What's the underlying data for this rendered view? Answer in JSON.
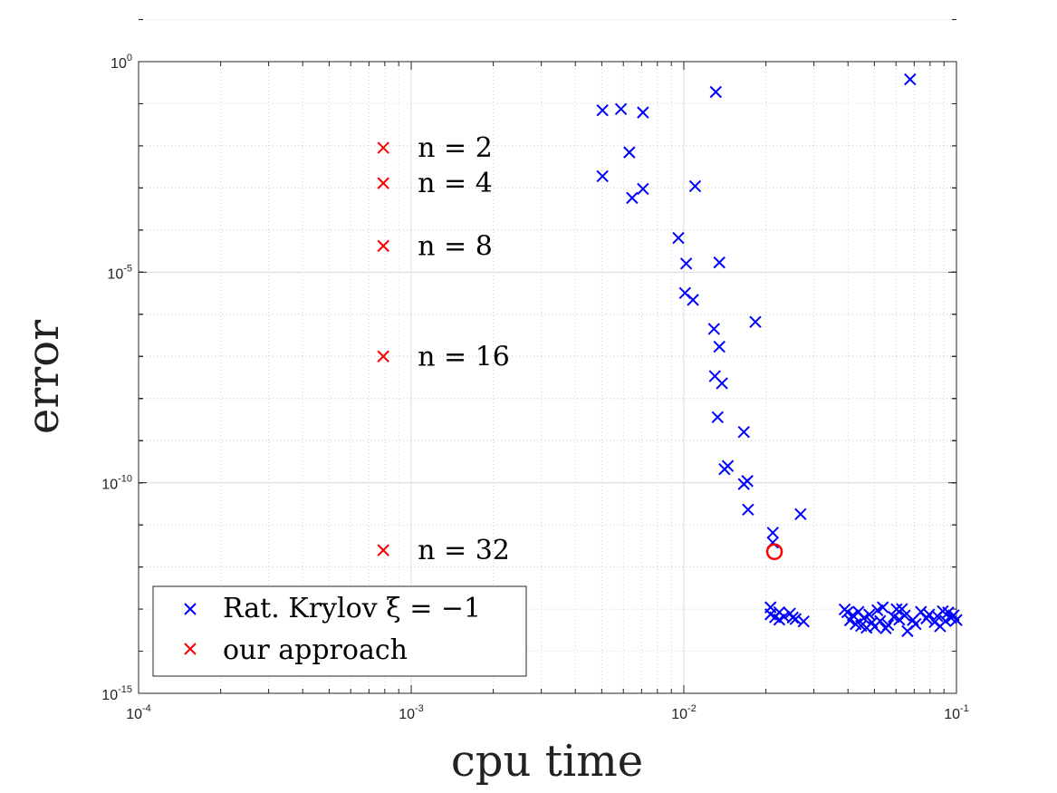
{
  "chart_data": {
    "type": "scatter",
    "xscale": "log",
    "yscale": "log",
    "xlim": [
      0.0001,
      0.1
    ],
    "ylim": [
      1e-15,
      1
    ],
    "xlabel": "cpu time",
    "ylabel": "error",
    "grid": true,
    "legend_position": "bottom-left",
    "x_ticks": [
      {
        "base": "10",
        "exp": "-4",
        "value": 0.0001
      },
      {
        "base": "10",
        "exp": "-3",
        "value": 0.001
      },
      {
        "base": "10",
        "exp": "-2",
        "value": 0.01
      },
      {
        "base": "10",
        "exp": "-1",
        "value": 0.1
      }
    ],
    "y_ticks": [
      {
        "base": "10",
        "exp": "0",
        "value": 1
      },
      {
        "base": "10",
        "exp": "-5",
        "value": 1e-05
      },
      {
        "base": "10",
        "exp": "-10",
        "value": 1e-10
      },
      {
        "base": "10",
        "exp": "-15",
        "value": 1e-15
      }
    ],
    "series": [
      {
        "name": "Rat. Krylov ξ = −1",
        "color": "#0000ff",
        "marker": "x",
        "points": [
          [
            0.00503,
            0.07
          ],
          [
            0.00503,
            0.0019
          ],
          [
            0.00588,
            0.075
          ],
          [
            0.00631,
            0.007
          ],
          [
            0.00646,
            0.00058
          ],
          [
            0.00708,
            0.062
          ],
          [
            0.00708,
            0.00095
          ],
          [
            0.00955,
            6.5e-05
          ],
          [
            0.0102,
            1.6e-05
          ],
          [
            0.0101,
            3.2e-06
          ],
          [
            0.0108,
            2.2e-06
          ],
          [
            0.011,
            0.0011
          ],
          [
            0.0131,
            0.19
          ],
          [
            0.0135,
            1.7e-05
          ],
          [
            0.0129,
            4.5e-07
          ],
          [
            0.0135,
            1.7e-07
          ],
          [
            0.013,
            3.4e-08
          ],
          [
            0.0138,
            2.3e-08
          ],
          [
            0.0133,
            3.6e-09
          ],
          [
            0.0166,
            1.6e-09
          ],
          [
            0.0141,
            2.1e-10
          ],
          [
            0.0145,
            2.5e-10
          ],
          [
            0.0183,
            6.6e-07
          ],
          [
            0.0166,
            9.3e-11
          ],
          [
            0.0171,
            1.1e-10
          ],
          [
            0.0172,
            2.3e-11
          ],
          [
            0.0212,
            6.5e-12
          ],
          [
            0.0212,
            3.8e-12
          ],
          [
            0.0208,
            1.1e-13
          ],
          [
            0.0208,
            7.5e-14
          ],
          [
            0.0216,
            6.4e-14
          ],
          [
            0.0224,
            8.4e-14
          ],
          [
            0.0224,
            5.6e-14
          ],
          [
            0.0233,
            6.6e-14
          ],
          [
            0.0245,
            7.8e-14
          ],
          [
            0.0251,
            6.3e-14
          ],
          [
            0.0257,
            5.8e-14
          ],
          [
            0.0268,
            1.8e-11
          ],
          [
            0.0275,
            5.1e-14
          ],
          [
            0.0389,
            9.8e-14
          ],
          [
            0.0398,
            8.4e-14
          ],
          [
            0.0407,
            5.4e-14
          ],
          [
            0.0417,
            7.1e-14
          ],
          [
            0.0427,
            4.4e-14
          ],
          [
            0.0437,
            8.6e-14
          ],
          [
            0.0447,
            4e-14
          ],
          [
            0.0457,
            6.1e-14
          ],
          [
            0.0468,
            3.6e-14
          ],
          [
            0.0479,
            7.4e-14
          ],
          [
            0.049,
            4.8e-14
          ],
          [
            0.0501,
            3.8e-14
          ],
          [
            0.0513,
            9.4e-14
          ],
          [
            0.0525,
            5.2e-14
          ],
          [
            0.0537,
            1.1e-13
          ],
          [
            0.055,
            3.5e-14
          ],
          [
            0.0562,
            4.2e-14
          ],
          [
            0.0589,
            6.5e-14
          ],
          [
            0.0603,
            9.9e-14
          ],
          [
            0.0617,
            5.6e-14
          ],
          [
            0.0631,
            1e-13
          ],
          [
            0.0646,
            7e-14
          ],
          [
            0.0661,
            3e-14
          ],
          [
            0.0676,
            0.38
          ],
          [
            0.0692,
            5.5e-14
          ],
          [
            0.0708,
            4.4e-14
          ],
          [
            0.0741,
            8.6e-14
          ],
          [
            0.0776,
            6e-14
          ],
          [
            0.0794,
            7.4e-14
          ],
          [
            0.0832,
            4.9e-14
          ],
          [
            0.0851,
            6.8e-14
          ],
          [
            0.0871,
            3.9e-14
          ],
          [
            0.0891,
            8.9e-14
          ],
          [
            0.0912,
            5.2e-14
          ],
          [
            0.0933,
            8.3e-14
          ],
          [
            0.0955,
            6.2e-14
          ],
          [
            0.0977,
            7.1e-14
          ],
          [
            0.1,
            5.5e-14
          ]
        ]
      },
      {
        "name": "our approach",
        "color": "#ff0000",
        "marker": "x",
        "points": [
          [
            0.00079,
            0.009
          ],
          [
            0.00079,
            0.0013
          ],
          [
            0.00079,
            4.2e-05
          ],
          [
            0.00079,
            1e-07
          ],
          [
            0.00079,
            2.5e-12
          ]
        ],
        "labels": [
          "n = 2",
          "n = 4",
          "n = 8",
          "n = 16",
          "n = 32"
        ]
      }
    ],
    "highlight": {
      "x": 0.0215,
      "y": 2.3e-12,
      "marker": "circle",
      "color": "#ff0000"
    },
    "legend": {
      "entries": [
        {
          "label": "Rat. Krylov ξ = −1",
          "color": "#0000ff"
        },
        {
          "label": "our approach",
          "color": "#ff0000"
        }
      ]
    }
  }
}
